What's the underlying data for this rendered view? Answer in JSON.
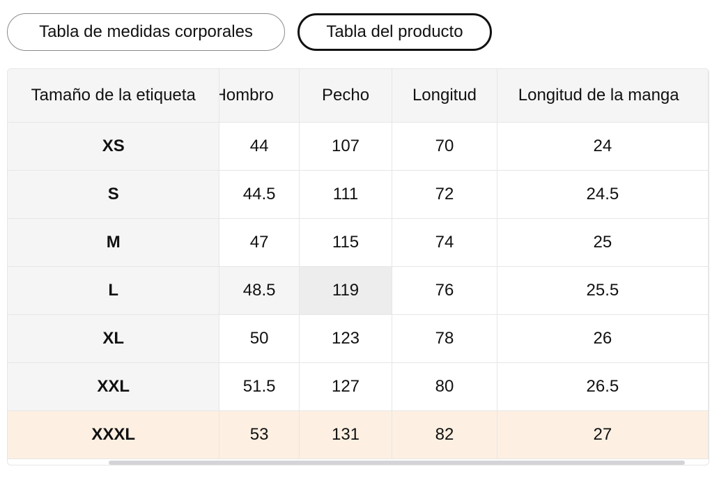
{
  "tabs": [
    {
      "label": "Tabla de medidas corporales",
      "active": false
    },
    {
      "label": "Tabla del producto",
      "active": true
    }
  ],
  "table": {
    "headers": [
      "Tamaño de la etiqueta",
      "Hombro",
      "Pecho",
      "Longitud",
      "Longitud de la manga"
    ],
    "rows": [
      [
        "XS",
        "44",
        "107",
        "70",
        "24"
      ],
      [
        "S",
        "44.5",
        "111",
        "72",
        "24.5"
      ],
      [
        "M",
        "47",
        "115",
        "74",
        "25"
      ],
      [
        "L",
        "48.5",
        "119",
        "76",
        "25.5"
      ],
      [
        "XL",
        "50",
        "123",
        "78",
        "26"
      ],
      [
        "XXL",
        "51.5",
        "127",
        "80",
        "26.5"
      ],
      [
        "XXXL",
        "53",
        "131",
        "82",
        "27"
      ]
    ]
  },
  "colors": {
    "header_bg": "#f5f5f5",
    "highlight_row": "#fdf0e2",
    "border": "#e6e6e6",
    "active_tab_border": "#111111"
  }
}
